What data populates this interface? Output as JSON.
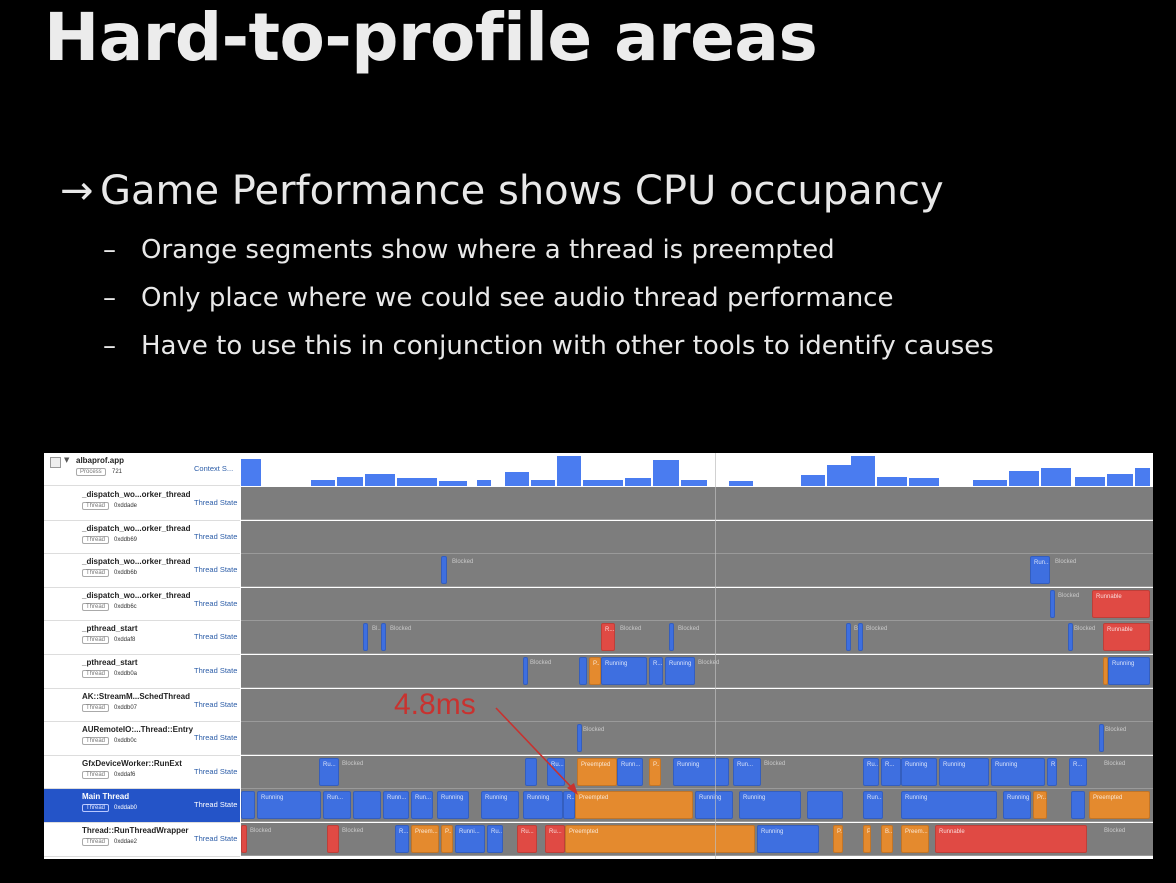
{
  "slide": {
    "title": "Hard-to-profile areas",
    "bullet": "Game Performance shows CPU occupancy",
    "bullet_arrow": "→",
    "sub_dash": "–",
    "subs": [
      "Orange segments show where a thread is preempted",
      "Only place where we could see audio thread performance",
      "Have to use this in conjunction with other tools to identify causes"
    ]
  },
  "profiler": {
    "process": {
      "name": "albaprof.app",
      "tag": "Process",
      "id": "721",
      "kind": "Context S..."
    },
    "annotation": "4.8ms",
    "colors": {
      "running": "#3e6fe0",
      "preempted": "#e48a2e",
      "runnable": "#e04a44",
      "blocked": "#7d7d7d",
      "selected": "#2454c8"
    },
    "threads": [
      {
        "name": "_dispatch_wo...orker_thread",
        "tag": "Thread",
        "id": "0xddade",
        "kind": "Thread State",
        "segs": []
      },
      {
        "name": "_dispatch_wo...orker_thread",
        "tag": "Thread",
        "id": "0xddb69",
        "kind": "Thread State",
        "segs": []
      },
      {
        "name": "_dispatch_wo...orker_thread",
        "tag": "Thread",
        "id": "0xddb6b",
        "kind": "Thread State",
        "segs": [
          {
            "s": "running",
            "a": 200,
            "w": 6,
            "t": ""
          },
          {
            "s": "blocked",
            "a": 208,
            "w": 60,
            "t": "Blocked"
          },
          {
            "s": "running",
            "a": 789,
            "w": 20,
            "t": "Run..."
          },
          {
            "s": "blocked",
            "a": 811,
            "w": 60,
            "t": "Blocked"
          }
        ]
      },
      {
        "name": "_dispatch_wo...orker_thread",
        "tag": "Thread",
        "id": "0xddb6c",
        "kind": "Thread State",
        "segs": [
          {
            "s": "running",
            "a": 809,
            "w": 4,
            "t": ""
          },
          {
            "s": "blocked",
            "a": 814,
            "w": 40,
            "t": "Blocked"
          },
          {
            "s": "runnable",
            "a": 851,
            "w": 58,
            "t": "Runnable"
          }
        ]
      },
      {
        "name": "_pthread_start",
        "tag": "Thread",
        "id": "0xddaf8",
        "kind": "Thread State",
        "segs": [
          {
            "s": "running",
            "a": 122,
            "w": 5,
            "t": ""
          },
          {
            "s": "blocked",
            "a": 128,
            "w": 14,
            "t": "Bl..."
          },
          {
            "s": "running",
            "a": 140,
            "w": 4,
            "t": ""
          },
          {
            "s": "blocked",
            "a": 146,
            "w": 40,
            "t": "Blocked"
          },
          {
            "s": "runnable",
            "a": 360,
            "w": 14,
            "t": "R..."
          },
          {
            "s": "blocked",
            "a": 376,
            "w": 50,
            "t": "Blocked"
          },
          {
            "s": "running",
            "a": 428,
            "w": 5,
            "t": ""
          },
          {
            "s": "blocked",
            "a": 434,
            "w": 40,
            "t": "Blocked"
          },
          {
            "s": "running",
            "a": 605,
            "w": 4,
            "t": ""
          },
          {
            "s": "blocked",
            "a": 610,
            "w": 10,
            "t": "B..."
          },
          {
            "s": "running",
            "a": 617,
            "w": 4,
            "t": ""
          },
          {
            "s": "blocked",
            "a": 622,
            "w": 40,
            "t": "Blocked"
          },
          {
            "s": "running",
            "a": 827,
            "w": 4,
            "t": ""
          },
          {
            "s": "blocked",
            "a": 830,
            "w": 34,
            "t": "Blocked"
          },
          {
            "s": "runnable",
            "a": 862,
            "w": 47,
            "t": "Runnable"
          }
        ]
      },
      {
        "name": "_pthread_start",
        "tag": "Thread",
        "id": "0xddb0a",
        "kind": "Thread State",
        "segs": [
          {
            "s": "running",
            "a": 282,
            "w": 4,
            "t": ""
          },
          {
            "s": "blocked",
            "a": 286,
            "w": 50,
            "t": "Blocked"
          },
          {
            "s": "running",
            "a": 338,
            "w": 8,
            "t": ""
          },
          {
            "s": "running",
            "a": 348,
            "w": 12,
            "t": "P..."
          },
          {
            "s": "preempted",
            "a": 348,
            "w": 12,
            "t": "P..."
          },
          {
            "s": "running",
            "a": 360,
            "w": 46,
            "t": "Running"
          },
          {
            "s": "running",
            "a": 408,
            "w": 14,
            "t": "R..."
          },
          {
            "s": "running",
            "a": 424,
            "w": 30,
            "t": "Running"
          },
          {
            "s": "blocked",
            "a": 454,
            "w": 40,
            "t": "Blocked"
          },
          {
            "s": "preempted",
            "a": 862,
            "w": 5,
            "t": ""
          },
          {
            "s": "running",
            "a": 867,
            "w": 42,
            "t": "Running"
          }
        ]
      },
      {
        "name": "AK::StreamM...SchedThread",
        "tag": "Thread",
        "id": "0xddb07",
        "kind": "Thread State",
        "segs": []
      },
      {
        "name": "AURemoteIO:...Thread::Entry",
        "tag": "Thread",
        "id": "0xddb0c",
        "kind": "Thread State",
        "segs": [
          {
            "s": "running",
            "a": 336,
            "w": 3,
            "t": ""
          },
          {
            "s": "blocked",
            "a": 339,
            "w": 40,
            "t": "Blocked"
          },
          {
            "s": "running",
            "a": 858,
            "w": 3,
            "t": ""
          },
          {
            "s": "blocked",
            "a": 861,
            "w": 40,
            "t": "Blocked"
          }
        ]
      },
      {
        "name": "GfxDeviceWorker::RunExt",
        "tag": "Thread",
        "id": "0xddaf6",
        "kind": "Thread State",
        "segs": [
          {
            "s": "running",
            "a": 78,
            "w": 20,
            "t": "Ru..."
          },
          {
            "s": "blocked",
            "a": 98,
            "w": 60,
            "t": "Blocked"
          },
          {
            "s": "running",
            "a": 284,
            "w": 12,
            "t": ""
          },
          {
            "s": "running",
            "a": 306,
            "w": 18,
            "t": "Ru..."
          },
          {
            "s": "preempted",
            "a": 336,
            "w": 40,
            "t": "Preempted"
          },
          {
            "s": "running",
            "a": 376,
            "w": 26,
            "t": "Runn..."
          },
          {
            "s": "preempted",
            "a": 408,
            "w": 12,
            "t": "P..."
          },
          {
            "s": "running",
            "a": 432,
            "w": 56,
            "t": "Running"
          },
          {
            "s": "running",
            "a": 492,
            "w": 28,
            "t": "Run..."
          },
          {
            "s": "blocked",
            "a": 520,
            "w": 60,
            "t": "Blocked"
          },
          {
            "s": "running",
            "a": 622,
            "w": 16,
            "t": "Ru..."
          },
          {
            "s": "running",
            "a": 640,
            "w": 20,
            "t": "R..."
          },
          {
            "s": "running",
            "a": 660,
            "w": 36,
            "t": "Running"
          },
          {
            "s": "running",
            "a": 698,
            "w": 50,
            "t": "Running"
          },
          {
            "s": "running",
            "a": 750,
            "w": 54,
            "t": "Running"
          },
          {
            "s": "running",
            "a": 806,
            "w": 10,
            "t": "R..."
          },
          {
            "s": "running",
            "a": 828,
            "w": 18,
            "t": "R..."
          },
          {
            "s": "blocked",
            "a": 860,
            "w": 40,
            "t": "Blocked"
          }
        ]
      },
      {
        "name": "Main Thread",
        "tag": "Thread",
        "id": "0xddab0",
        "kind": "Thread State",
        "selected": true,
        "segs": [
          {
            "s": "running",
            "a": 0,
            "w": 14,
            "t": ""
          },
          {
            "s": "running",
            "a": 16,
            "w": 64,
            "t": "Running"
          },
          {
            "s": "running",
            "a": 82,
            "w": 28,
            "t": "Run..."
          },
          {
            "s": "running",
            "a": 112,
            "w": 28,
            "t": ""
          },
          {
            "s": "running",
            "a": 142,
            "w": 26,
            "t": "Runn..."
          },
          {
            "s": "running",
            "a": 170,
            "w": 22,
            "t": "Run..."
          },
          {
            "s": "running",
            "a": 196,
            "w": 32,
            "t": "Running"
          },
          {
            "s": "running",
            "a": 240,
            "w": 38,
            "t": "Running"
          },
          {
            "s": "running",
            "a": 282,
            "w": 40,
            "t": "Running"
          },
          {
            "s": "running",
            "a": 322,
            "w": 12,
            "t": "R..."
          },
          {
            "s": "preempted",
            "a": 334,
            "w": 118,
            "t": "Preempted"
          },
          {
            "s": "running",
            "a": 454,
            "w": 38,
            "t": "Running"
          },
          {
            "s": "running",
            "a": 498,
            "w": 62,
            "t": "Running"
          },
          {
            "s": "running",
            "a": 566,
            "w": 36,
            "t": ""
          },
          {
            "s": "running",
            "a": 622,
            "w": 20,
            "t": "Run..."
          },
          {
            "s": "running",
            "a": 660,
            "w": 96,
            "t": "Running"
          },
          {
            "s": "running",
            "a": 762,
            "w": 28,
            "t": "Running"
          },
          {
            "s": "preempted",
            "a": 792,
            "w": 14,
            "t": "Pr..."
          },
          {
            "s": "running",
            "a": 830,
            "w": 14,
            "t": ""
          },
          {
            "s": "preempted",
            "a": 848,
            "w": 61,
            "t": "Preempted"
          }
        ]
      },
      {
        "name": "Thread::RunThreadWrapper",
        "tag": "Thread",
        "id": "0xddae2",
        "kind": "Thread State",
        "segs": [
          {
            "s": "runnable",
            "a": 0,
            "w": 6,
            "t": ""
          },
          {
            "s": "blocked",
            "a": 6,
            "w": 60,
            "t": "Blocked"
          },
          {
            "s": "runnable",
            "a": 86,
            "w": 12,
            "t": ""
          },
          {
            "s": "blocked",
            "a": 98,
            "w": 50,
            "t": "Blocked"
          },
          {
            "s": "running",
            "a": 154,
            "w": 14,
            "t": "R..."
          },
          {
            "s": "preempted",
            "a": 170,
            "w": 28,
            "t": "Preem..."
          },
          {
            "s": "preempted",
            "a": 200,
            "w": 12,
            "t": "P..."
          },
          {
            "s": "running",
            "a": 214,
            "w": 30,
            "t": "Runni..."
          },
          {
            "s": "running",
            "a": 246,
            "w": 16,
            "t": "Ru..."
          },
          {
            "s": "runnable",
            "a": 276,
            "w": 20,
            "t": "Ru..."
          },
          {
            "s": "runnable",
            "a": 304,
            "w": 20,
            "t": "Ru..."
          },
          {
            "s": "preempted",
            "a": 324,
            "w": 190,
            "t": "Preempted"
          },
          {
            "s": "running",
            "a": 516,
            "w": 62,
            "t": "Running"
          },
          {
            "s": "preempted",
            "a": 592,
            "w": 10,
            "t": "P..."
          },
          {
            "s": "preempted",
            "a": 622,
            "w": 8,
            "t": "P..."
          },
          {
            "s": "preempted",
            "a": 640,
            "w": 12,
            "t": "B..."
          },
          {
            "s": "preempted",
            "a": 660,
            "w": 28,
            "t": "Preem..."
          },
          {
            "s": "runnable",
            "a": 694,
            "w": 152,
            "t": "Runnable"
          },
          {
            "s": "blocked",
            "a": 860,
            "w": 40,
            "t": "Blocked"
          }
        ]
      }
    ],
    "histogram": [
      {
        "a": 0,
        "w": 20,
        "v": 0.9
      },
      {
        "a": 70,
        "w": 24,
        "v": 0.2
      },
      {
        "a": 96,
        "w": 26,
        "v": 0.3
      },
      {
        "a": 124,
        "w": 30,
        "v": 0.4
      },
      {
        "a": 156,
        "w": 40,
        "v": 0.25
      },
      {
        "a": 198,
        "w": 28,
        "v": 0.15
      },
      {
        "a": 236,
        "w": 14,
        "v": 0.2
      },
      {
        "a": 264,
        "w": 24,
        "v": 0.45
      },
      {
        "a": 290,
        "w": 24,
        "v": 0.2
      },
      {
        "a": 316,
        "w": 24,
        "v": 1.0
      },
      {
        "a": 342,
        "w": 40,
        "v": 0.2
      },
      {
        "a": 384,
        "w": 26,
        "v": 0.25
      },
      {
        "a": 412,
        "w": 26,
        "v": 0.85
      },
      {
        "a": 440,
        "w": 26,
        "v": 0.2
      },
      {
        "a": 488,
        "w": 24,
        "v": 0.15
      },
      {
        "a": 560,
        "w": 24,
        "v": 0.35
      },
      {
        "a": 586,
        "w": 24,
        "v": 0.7
      },
      {
        "a": 610,
        "w": 24,
        "v": 1.0
      },
      {
        "a": 636,
        "w": 30,
        "v": 0.3
      },
      {
        "a": 668,
        "w": 30,
        "v": 0.25
      },
      {
        "a": 732,
        "w": 34,
        "v": 0.2
      },
      {
        "a": 768,
        "w": 30,
        "v": 0.5
      },
      {
        "a": 800,
        "w": 30,
        "v": 0.6
      },
      {
        "a": 834,
        "w": 30,
        "v": 0.3
      },
      {
        "a": 866,
        "w": 26,
        "v": 0.4
      },
      {
        "a": 894,
        "w": 15,
        "v": 0.6
      }
    ]
  }
}
